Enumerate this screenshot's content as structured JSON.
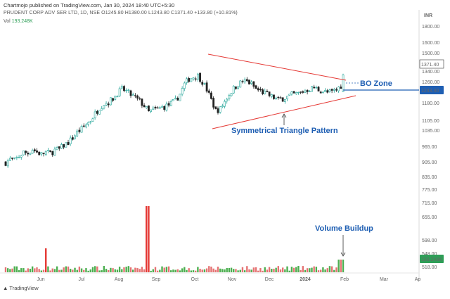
{
  "header": {
    "publisher": "Chartmojo published on TradingView.com, Jan 30, 2024 18:40 UTC+5:30",
    "symbol_line": "PRUDENT CORP ADV SER LTD, 1D, NSE  O1245.80  H1380.00  L1243.80  C1371.40  +133.80 (+10.81%)",
    "volume_label": "Vol",
    "volume_value": "193.248K"
  },
  "footer": {
    "logo": "TradingView"
  },
  "chart_data": {
    "type": "candlestick",
    "currency": "INR",
    "price_axis": {
      "ticks": [
        "1800.00",
        "1600.00",
        "1500.00",
        "1420.00",
        "1340.00",
        "1260.00",
        "1180.00",
        "1105.00",
        "1035.00",
        "965.00",
        "905.00",
        "835.00",
        "775.00",
        "715.00",
        "655.00",
        "598.00",
        "548.00",
        "518.00"
      ],
      "scale": "log",
      "range": [
        500,
        1900
      ]
    },
    "time_axis": {
      "ticks": [
        "Jun",
        "Jul",
        "Aug",
        "Sep",
        "Oct",
        "Nov",
        "Dec",
        "2024",
        "Feb",
        "Mar",
        "Ap"
      ]
    },
    "price_labels": {
      "last": "1371.40",
      "breakout_level": "1243.40",
      "volume": "193.248K"
    },
    "annotations": {
      "bo_zone": "BO Zone",
      "pattern": "Symmetrical Triangle Pattern",
      "volume_note": "Volume Buildup"
    },
    "key_levels": {
      "upper_trendline": [
        1550,
        1280
      ],
      "lower_trendline": [
        1095,
        1200
      ],
      "breakout_level": 1243.4
    },
    "price_path": [
      [
        0,
        835
      ],
      [
        2,
        850
      ],
      [
        4,
        845
      ],
      [
        6,
        865
      ],
      [
        8,
        885
      ],
      [
        10,
        880
      ],
      [
        12,
        900
      ],
      [
        14,
        885
      ],
      [
        16,
        875
      ],
      [
        18,
        885
      ],
      [
        20,
        880
      ],
      [
        22,
        895
      ],
      [
        24,
        900
      ],
      [
        26,
        920
      ],
      [
        28,
        935
      ],
      [
        30,
        960
      ],
      [
        32,
        990
      ],
      [
        34,
        1010
      ],
      [
        36,
        1035
      ],
      [
        38,
        1060
      ],
      [
        40,
        1100
      ],
      [
        42,
        1140
      ],
      [
        44,
        1165
      ],
      [
        46,
        1175
      ],
      [
        48,
        1200
      ],
      [
        50,
        1235
      ],
      [
        52,
        1265
      ],
      [
        54,
        1250
      ],
      [
        56,
        1225
      ],
      [
        58,
        1205
      ],
      [
        60,
        1180
      ],
      [
        62,
        1150
      ],
      [
        64,
        1110
      ],
      [
        66,
        1125
      ],
      [
        68,
        1130
      ],
      [
        70,
        1140
      ],
      [
        72,
        1150
      ],
      [
        74,
        1165
      ],
      [
        76,
        1185
      ],
      [
        78,
        1230
      ],
      [
        80,
        1300
      ],
      [
        82,
        1340
      ],
      [
        84,
        1355
      ],
      [
        86,
        1365
      ],
      [
        88,
        1320
      ],
      [
        90,
        1260
      ],
      [
        92,
        1190
      ],
      [
        94,
        1120
      ],
      [
        96,
        1130
      ],
      [
        98,
        1180
      ],
      [
        100,
        1230
      ],
      [
        102,
        1270
      ],
      [
        104,
        1300
      ],
      [
        106,
        1320
      ],
      [
        108,
        1320
      ],
      [
        110,
        1300
      ],
      [
        112,
        1265
      ],
      [
        114,
        1250
      ],
      [
        116,
        1235
      ],
      [
        118,
        1220
      ],
      [
        120,
        1205
      ],
      [
        122,
        1190
      ],
      [
        124,
        1200
      ],
      [
        126,
        1210
      ],
      [
        128,
        1225
      ],
      [
        130,
        1230
      ],
      [
        132,
        1240
      ],
      [
        134,
        1255
      ],
      [
        136,
        1265
      ],
      [
        138,
        1275
      ],
      [
        140,
        1260
      ],
      [
        142,
        1250
      ],
      [
        144,
        1240
      ],
      [
        146,
        1245
      ],
      [
        148,
        1260
      ],
      [
        150,
        1290
      ],
      [
        151,
        1371
      ]
    ],
    "volume_spikes": [
      {
        "position": 0.12,
        "value": "high"
      },
      {
        "position": 0.42,
        "value": "highest"
      },
      {
        "position": 0.93,
        "value": "buildup"
      }
    ]
  }
}
